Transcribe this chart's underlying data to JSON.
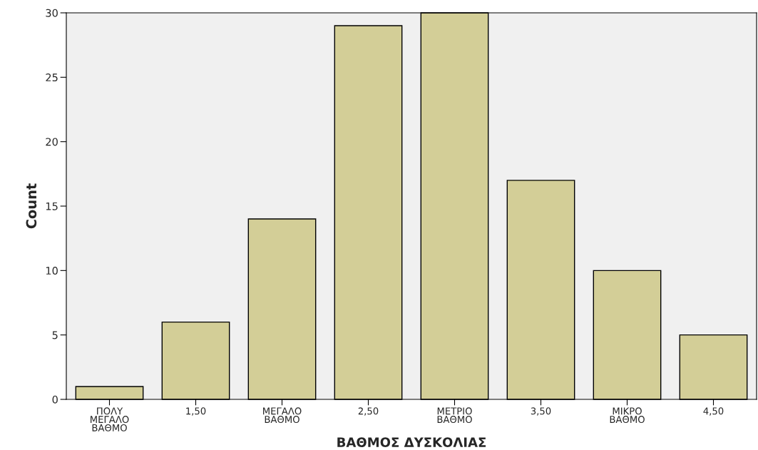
{
  "chart_data": {
    "type": "bar",
    "xlabel": "ΒΑΘΜΟΣ ΔΥΣΚΟΛΙΑΣ",
    "ylabel": "Count",
    "categories": [
      "ΠΟΛΥ\nΜΕΓΑΛΟ\nΒΑΘΜΟ",
      "1,50",
      "ΜΕΓΑΛΟ\nΒΑΘΜΟ",
      "2,50",
      "ΜΕΤΡΙΟ\nΒΑΘΜΟ",
      "3,50",
      "ΜΙΚΡΟ\nΒΑΘΜΟ",
      "4,50"
    ],
    "values": [
      1,
      6,
      14,
      29,
      30,
      17,
      10,
      5
    ],
    "color": "#d3ce97",
    "ylim": [
      0,
      30
    ],
    "yticks": [
      0,
      5,
      10,
      15,
      20,
      25,
      30
    ],
    "grid": false
  }
}
